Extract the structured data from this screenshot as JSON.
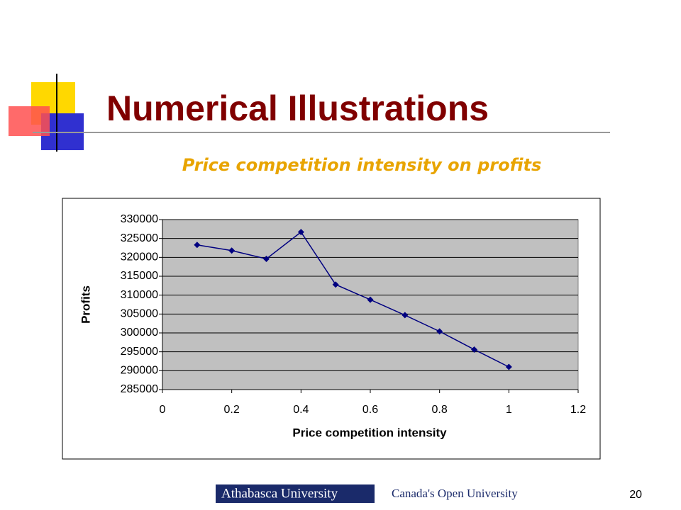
{
  "slide": {
    "title": "Numerical Illustrations",
    "page_number": "20",
    "footer": {
      "left_logo": "Athabasca University",
      "right_logo": "Canada's Open University"
    }
  },
  "chart_data": {
    "type": "line",
    "title": "Price competition intensity on profits",
    "x_label": "Price competition intensity",
    "y_label": "Profits",
    "x": [
      0.1,
      0.2,
      0.3,
      0.4,
      0.5,
      0.6,
      0.7,
      0.8,
      0.9,
      1.0
    ],
    "series": [
      {
        "color": "#000080",
        "values": [
          323300,
          321800,
          319600,
          326700,
          312800,
          308800,
          304700,
          300400,
          295600,
          291000
        ]
      }
    ],
    "xlim": [
      0,
      1.2
    ],
    "xticks": [
      0,
      0.2,
      0.4,
      0.6,
      0.8,
      1,
      1.2
    ],
    "ylim": [
      285000,
      330000
    ],
    "yticks": [
      285000,
      290000,
      295000,
      300000,
      305000,
      310000,
      315000,
      320000,
      325000,
      330000
    ],
    "grid": true
  }
}
